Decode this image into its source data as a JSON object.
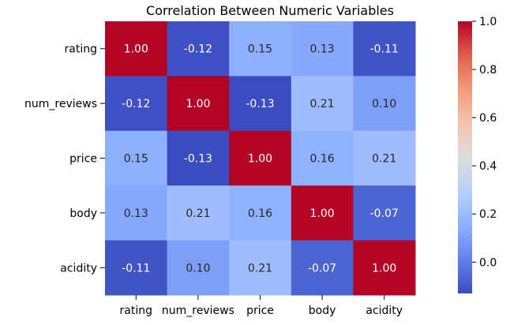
{
  "chart_data": {
    "type": "heatmap",
    "title": "Correlation Between Numeric Variables",
    "xlabel": "",
    "ylabel": "",
    "rows": [
      "rating",
      "num_reviews",
      "price",
      "body",
      "acidity"
    ],
    "columns": [
      "rating",
      "num_reviews",
      "price",
      "body",
      "acidity"
    ],
    "values": [
      [
        1.0,
        -0.12,
        0.15,
        0.13,
        -0.11
      ],
      [
        -0.12,
        1.0,
        -0.13,
        0.21,
        0.1
      ],
      [
        0.15,
        -0.13,
        1.0,
        0.16,
        0.21
      ],
      [
        0.13,
        0.21,
        0.16,
        1.0,
        -0.07
      ],
      [
        -0.11,
        0.1,
        0.21,
        -0.07,
        1.0
      ]
    ],
    "value_labels": [
      [
        "1.00",
        "-0.12",
        "0.15",
        "0.13",
        "-0.11"
      ],
      [
        "-0.12",
        "1.00",
        "-0.13",
        "0.21",
        "0.10"
      ],
      [
        "0.15",
        "-0.13",
        "1.00",
        "0.16",
        "0.21"
      ],
      [
        "0.13",
        "0.21",
        "0.16",
        "1.00",
        "-0.07"
      ],
      [
        "-0.11",
        "0.10",
        "0.21",
        "-0.07",
        "1.00"
      ]
    ],
    "colormap": "coolwarm",
    "colorbar": {
      "range": [
        -0.13,
        1.0
      ],
      "ticks": [
        0.0,
        0.2,
        0.4,
        0.6,
        0.8,
        1.0
      ],
      "tick_labels": [
        "0.0",
        "0.2",
        "0.4",
        "0.6",
        "0.8",
        "1.0"
      ]
    },
    "grid": false,
    "legend": "colorbar-right"
  }
}
